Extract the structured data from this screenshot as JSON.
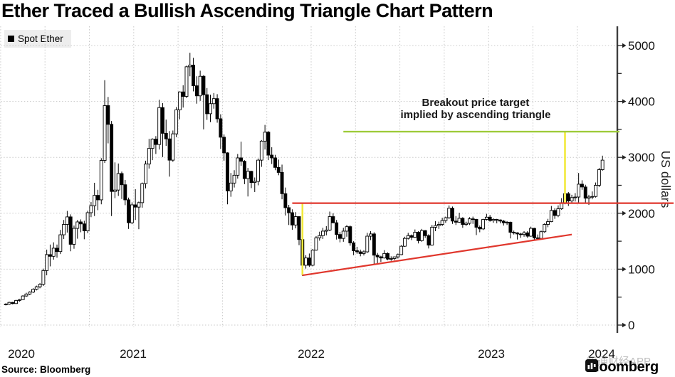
{
  "title": "Ether Traced a Bullish Ascending Triangle Chart Pattern",
  "legend": {
    "label": "Spot Ether"
  },
  "annotation": {
    "line1": "Breakout price target",
    "line2": "implied by ascending triangle"
  },
  "source": "Source: Bloomberg",
  "branding": {
    "wordmark": "Bloomberg"
  },
  "watermark": "智通财经APP",
  "y_axis": {
    "label": "US dollars",
    "ticks": [
      0,
      1000,
      2000,
      3000,
      4000,
      5000
    ],
    "minor_ticks": [
      500,
      1500,
      2500,
      3500,
      4500
    ]
  },
  "x_axis": {
    "years": [
      "2020",
      "2021",
      "2022",
      "2023",
      "2024"
    ]
  },
  "colors": {
    "red": "#e0372d",
    "green": "#9ecb3a",
    "yellow": "#f2e93d",
    "candle": "#000000",
    "grid": "#c8c8c8",
    "legend_bg": "#ededed"
  },
  "chart_data": {
    "type": "candlestick",
    "series_name": "Spot Ether",
    "frequency": "weekly",
    "range": "Oct 2020 - Feb 2024",
    "unit": "USD",
    "ylim": [
      0,
      5250
    ],
    "grid": true,
    "legend_position": "top-left",
    "candles_ohlc": [
      [
        365,
        392,
        352,
        375
      ],
      [
        375,
        418,
        362,
        405
      ],
      [
        405,
        415,
        370,
        385
      ],
      [
        385,
        452,
        378,
        440
      ],
      [
        440,
        468,
        420,
        455
      ],
      [
        455,
        535,
        448,
        520
      ],
      [
        520,
        578,
        505,
        555
      ],
      [
        555,
        604,
        538,
        590
      ],
      [
        590,
        660,
        572,
        640
      ],
      [
        640,
        705,
        620,
        685
      ],
      [
        685,
        752,
        658,
        730
      ],
      [
        730,
        1010,
        700,
        975
      ],
      [
        975,
        1350,
        890,
        1260
      ],
      [
        1260,
        1440,
        1050,
        1230
      ],
      [
        1230,
        1480,
        1170,
        1375
      ],
      [
        1375,
        1440,
        1205,
        1315
      ],
      [
        1315,
        1702,
        1270,
        1615
      ],
      [
        1615,
        1880,
        1540,
        1800
      ],
      [
        1800,
        2042,
        1655,
        1935
      ],
      [
        1935,
        1980,
        1320,
        1445
      ],
      [
        1445,
        1780,
        1365,
        1730
      ],
      [
        1730,
        1880,
        1545,
        1845
      ],
      [
        1845,
        1890,
        1660,
        1810
      ],
      [
        1810,
        1865,
        1535,
        1685
      ],
      [
        1685,
        2045,
        1645,
        2010
      ],
      [
        2010,
        2200,
        1930,
        2135
      ],
      [
        2135,
        2545,
        1950,
        2320
      ],
      [
        2320,
        2420,
        2055,
        2240
      ],
      [
        2240,
        2985,
        2160,
        2945
      ],
      [
        2945,
        4380,
        2900,
        3925
      ],
      [
        3925,
        4080,
        3250,
        3590
      ],
      [
        3590,
        3650,
        1950,
        2390
      ],
      [
        2390,
        2910,
        2270,
        2415
      ],
      [
        2415,
        2890,
        2310,
        2710
      ],
      [
        2710,
        2745,
        2255,
        2510
      ],
      [
        2510,
        2595,
        2145,
        2240
      ],
      [
        2240,
        2280,
        1720,
        1830
      ],
      [
        1830,
        2195,
        1805,
        2150
      ],
      [
        2150,
        2430,
        1880,
        2110
      ],
      [
        2110,
        2210,
        1715,
        2190
      ],
      [
        2190,
        2550,
        2100,
        2530
      ],
      [
        2530,
        2940,
        2445,
        2880
      ],
      [
        2880,
        3330,
        2800,
        3160
      ],
      [
        3160,
        3340,
        2950,
        3325
      ],
      [
        3325,
        3380,
        3060,
        3230
      ],
      [
        3230,
        4030,
        3140,
        3890
      ],
      [
        3890,
        3970,
        3005,
        3430
      ],
      [
        3430,
        3675,
        3205,
        3330
      ],
      [
        3330,
        3470,
        2655,
        2950
      ],
      [
        2950,
        3480,
        2920,
        3420
      ],
      [
        3420,
        3900,
        3360,
        3850
      ],
      [
        3850,
        4180,
        3680,
        4170
      ],
      [
        4170,
        4290,
        3890,
        4090
      ],
      [
        4090,
        4640,
        4060,
        4620
      ],
      [
        4620,
        4870,
        4450,
        4650
      ],
      [
        4650,
        4780,
        4180,
        4280
      ],
      [
        4280,
        4450,
        3960,
        4100
      ],
      [
        4100,
        4550,
        4010,
        4450
      ],
      [
        4450,
        4470,
        3500,
        4120
      ],
      [
        4120,
        4240,
        3670,
        3780
      ],
      [
        3780,
        4120,
        3630,
        3960
      ],
      [
        3960,
        4150,
        3870,
        4050
      ],
      [
        4050,
        4130,
        3620,
        3690
      ],
      [
        3690,
        3770,
        3150,
        3360
      ],
      [
        3360,
        3410,
        2940,
        3080
      ],
      [
        3080,
        3090,
        2160,
        2400
      ],
      [
        2400,
        2720,
        2295,
        2540
      ],
      [
        2540,
        2770,
        2460,
        2680
      ],
      [
        2680,
        3060,
        2620,
        2990
      ],
      [
        2990,
        3280,
        2850,
        2930
      ],
      [
        2930,
        2950,
        2520,
        2620
      ],
      [
        2620,
        2810,
        2300,
        2750
      ],
      [
        2750,
        2760,
        2450,
        2550
      ],
      [
        2550,
        2640,
        2380,
        2570
      ],
      [
        2570,
        2980,
        2500,
        2950
      ],
      [
        2950,
        3310,
        2830,
        3290
      ],
      [
        3290,
        3580,
        3140,
        3450
      ],
      [
        3450,
        3470,
        2950,
        3040
      ],
      [
        3040,
        3180,
        2880,
        2990
      ],
      [
        2990,
        3045,
        2770,
        2820
      ],
      [
        2820,
        2960,
        2680,
        2730
      ],
      [
        2730,
        2870,
        2250,
        2350
      ],
      [
        2350,
        2460,
        1960,
        2100
      ],
      [
        2100,
        2150,
        1790,
        2010
      ],
      [
        2010,
        2070,
        1705,
        1790
      ],
      [
        1790,
        2020,
        1730,
        1940
      ],
      [
        1940,
        1945,
        1430,
        1530
      ],
      [
        1530,
        1560,
        880,
        1070
      ],
      [
        1070,
        1250,
        1010,
        1200
      ],
      [
        1200,
        1280,
        1040,
        1070
      ],
      [
        1070,
        1360,
        1050,
        1340
      ],
      [
        1340,
        1590,
        1330,
        1560
      ],
      [
        1560,
        1670,
        1510,
        1600
      ],
      [
        1600,
        1740,
        1540,
        1680
      ],
      [
        1680,
        1770,
        1605,
        1700
      ],
      [
        1700,
        2030,
        1680,
        1940
      ],
      [
        1940,
        2000,
        1820,
        1830
      ],
      [
        1830,
        1880,
        1530,
        1620
      ],
      [
        1620,
        1665,
        1480,
        1550
      ],
      [
        1550,
        1740,
        1490,
        1680
      ],
      [
        1680,
        1790,
        1580,
        1760
      ],
      [
        1760,
        1780,
        1420,
        1470
      ],
      [
        1470,
        1500,
        1250,
        1330
      ],
      [
        1330,
        1400,
        1275,
        1310
      ],
      [
        1310,
        1350,
        1230,
        1280
      ],
      [
        1280,
        1340,
        1245,
        1310
      ],
      [
        1310,
        1650,
        1290,
        1590
      ],
      [
        1590,
        1680,
        1520,
        1630
      ],
      [
        1630,
        1660,
        1080,
        1250
      ],
      [
        1250,
        1290,
        1100,
        1220
      ],
      [
        1220,
        1240,
        1130,
        1200
      ],
      [
        1200,
        1340,
        1190,
        1280
      ],
      [
        1280,
        1300,
        1160,
        1180
      ],
      [
        1180,
        1230,
        1150,
        1190
      ],
      [
        1190,
        1225,
        1160,
        1220
      ],
      [
        1220,
        1280,
        1190,
        1260
      ],
      [
        1260,
        1430,
        1250,
        1410
      ],
      [
        1410,
        1580,
        1400,
        1550
      ],
      [
        1550,
        1650,
        1530,
        1600
      ],
      [
        1600,
        1620,
        1520,
        1570
      ],
      [
        1570,
        1710,
        1560,
        1660
      ],
      [
        1660,
        1680,
        1460,
        1510
      ],
      [
        1510,
        1720,
        1490,
        1690
      ],
      [
        1690,
        1700,
        1560,
        1600
      ],
      [
        1600,
        1625,
        1370,
        1430
      ],
      [
        1430,
        1790,
        1420,
        1750
      ],
      [
        1750,
        1860,
        1680,
        1780
      ],
      [
        1780,
        1850,
        1720,
        1800
      ],
      [
        1800,
        1920,
        1770,
        1870
      ],
      [
        1870,
        1940,
        1830,
        1920
      ],
      [
        1920,
        2140,
        1900,
        2090
      ],
      [
        2090,
        2120,
        1810,
        1860
      ],
      [
        1860,
        1950,
        1790,
        1840
      ],
      [
        1840,
        2010,
        1830,
        1910
      ],
      [
        1910,
        1930,
        1740,
        1800
      ],
      [
        1800,
        1850,
        1770,
        1820
      ],
      [
        1820,
        1930,
        1790,
        1900
      ],
      [
        1900,
        1940,
        1810,
        1890
      ],
      [
        1890,
        1900,
        1610,
        1750
      ],
      [
        1750,
        1780,
        1660,
        1720
      ],
      [
        1720,
        1900,
        1700,
        1890
      ],
      [
        1890,
        1990,
        1870,
        1930
      ],
      [
        1930,
        1970,
        1850,
        1870
      ],
      [
        1870,
        1910,
        1830,
        1890
      ],
      [
        1890,
        1900,
        1820,
        1880
      ],
      [
        1880,
        1890,
        1820,
        1860
      ],
      [
        1860,
        1880,
        1780,
        1830
      ],
      [
        1830,
        1860,
        1790,
        1840
      ],
      [
        1840,
        1850,
        1550,
        1660
      ],
      [
        1660,
        1690,
        1620,
        1650
      ],
      [
        1650,
        1660,
        1530,
        1630
      ],
      [
        1630,
        1650,
        1560,
        1620
      ],
      [
        1620,
        1680,
        1580,
        1650
      ],
      [
        1650,
        1680,
        1560,
        1590
      ],
      [
        1590,
        1760,
        1580,
        1730
      ],
      [
        1730,
        1740,
        1520,
        1560
      ],
      [
        1560,
        1620,
        1520,
        1550
      ],
      [
        1550,
        1690,
        1530,
        1670
      ],
      [
        1670,
        1820,
        1650,
        1800
      ],
      [
        1800,
        1900,
        1750,
        1850
      ],
      [
        1850,
        2130,
        1840,
        2050
      ],
      [
        2050,
        2090,
        1900,
        1960
      ],
      [
        1960,
        2140,
        1930,
        2080
      ],
      [
        2080,
        2270,
        2060,
        2190
      ],
      [
        2190,
        2400,
        2160,
        2350
      ],
      [
        2350,
        2380,
        2130,
        2220
      ],
      [
        2220,
        2330,
        2190,
        2280
      ],
      [
        2280,
        2360,
        2210,
        2290
      ],
      [
        2290,
        2720,
        2180,
        2520
      ],
      [
        2520,
        2590,
        2420,
        2470
      ],
      [
        2470,
        2510,
        2170,
        2270
      ],
      [
        2270,
        2330,
        2150,
        2290
      ],
      [
        2290,
        2390,
        2250,
        2300
      ],
      [
        2300,
        2550,
        2280,
        2500
      ],
      [
        2500,
        2810,
        2470,
        2780
      ],
      [
        2780,
        3030,
        2760,
        2950
      ]
    ],
    "overlays": {
      "resistance_line": {
        "value": 2180,
        "from_index": 84,
        "extend_past_axis": true,
        "color": "red"
      },
      "support_trendline": {
        "from": {
          "index": 87,
          "value": 890
        },
        "to": {
          "index": 166,
          "value": 1620
        },
        "color": "red"
      },
      "breakout_target_line": {
        "value": 3460,
        "from_index": 99,
        "color": "green"
      },
      "measure_line_triangle_height": {
        "index": 87,
        "from_value": 890,
        "to_value": 2180,
        "color": "yellow"
      },
      "measure_line_breakout": {
        "index": 164,
        "from_value": 2180,
        "to_value": 3460,
        "color": "yellow"
      }
    }
  }
}
